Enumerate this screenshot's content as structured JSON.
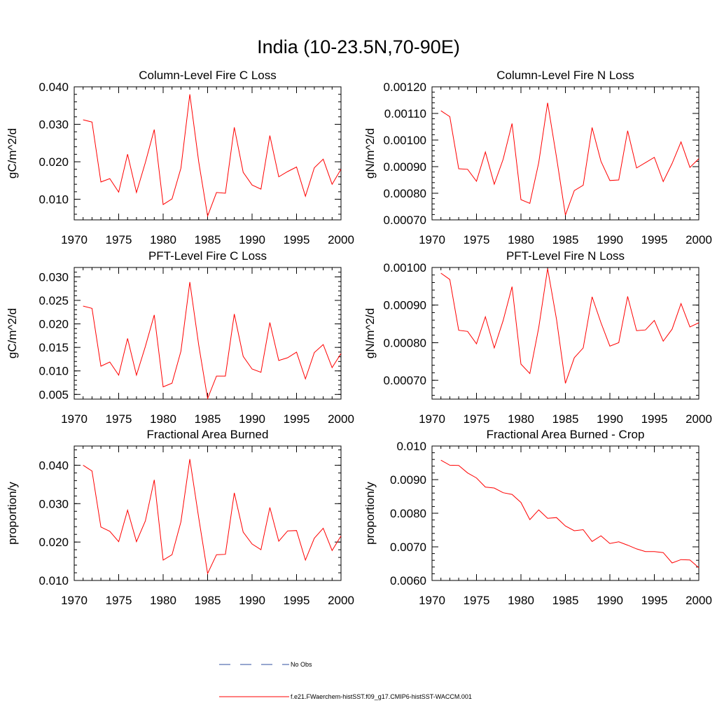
{
  "figure": {
    "title": "India (10-23.5N,70-90E)"
  },
  "colors": {
    "model": "#ff0000",
    "obs": "#2f4f9f",
    "axis": "#000000"
  },
  "legend": {
    "obs_label": "No Obs",
    "model_label": "f.e21.FWaerchem-histSST.f09_g17.CMIP6-histSST-WACCM.001"
  },
  "chart_data": [
    {
      "type": "line",
      "title": "Column-Level Fire C Loss",
      "ylabel": "gC/m^2/d",
      "xlim": [
        1970,
        2000
      ],
      "ylim": [
        0.0045,
        0.04
      ],
      "xticks": [
        1970,
        1975,
        1980,
        1985,
        1990,
        1995,
        2000
      ],
      "xtick_labels": [
        "1970",
        "1975",
        "1980",
        "1985",
        "1990",
        "1995",
        "2000"
      ],
      "yticks": [
        0.01,
        0.02,
        0.03,
        0.04
      ],
      "ytick_labels": [
        "0.010",
        "0.020",
        "0.030",
        "0.040"
      ],
      "yminor": 0.002,
      "x": [
        1971,
        1972,
        1973,
        1974,
        1975,
        1976,
        1977,
        1978,
        1979,
        1980,
        1981,
        1982,
        1983,
        1984,
        1985,
        1986,
        1987,
        1988,
        1989,
        1990,
        1991,
        1992,
        1993,
        1994,
        1995,
        1996,
        1997,
        1998,
        1999,
        2000
      ],
      "series": [
        {
          "values": [
            0.0312,
            0.0306,
            0.0146,
            0.0155,
            0.0119,
            0.022,
            0.0118,
            0.0198,
            0.0286,
            0.0086,
            0.0101,
            0.0183,
            0.038,
            0.02,
            0.0055,
            0.0118,
            0.0116,
            0.0292,
            0.0172,
            0.0138,
            0.0127,
            0.027,
            0.016,
            0.0174,
            0.0186,
            0.0108,
            0.0184,
            0.0207,
            0.014,
            0.018
          ]
        }
      ]
    },
    {
      "type": "line",
      "title": "Column-Level Fire N Loss",
      "ylabel": "gN/m^2/d",
      "xlim": [
        1970,
        2000
      ],
      "ylim": [
        0.0007,
        0.0012
      ],
      "xticks": [
        1970,
        1975,
        1980,
        1985,
        1990,
        1995,
        2000
      ],
      "xtick_labels": [
        "1970",
        "1975",
        "1980",
        "1985",
        "1990",
        "1995",
        "2000"
      ],
      "yticks": [
        0.0007,
        0.0008,
        0.0009,
        0.001,
        0.0011,
        0.0012
      ],
      "ytick_labels": [
        "0.00070",
        "0.00080",
        "0.00090",
        "0.00100",
        "0.00110",
        "0.00120"
      ],
      "yminor": 2e-05,
      "x": [
        1971,
        1972,
        1973,
        1974,
        1975,
        1976,
        1977,
        1978,
        1979,
        1980,
        1981,
        1982,
        1983,
        1984,
        1985,
        1986,
        1987,
        1988,
        1989,
        1990,
        1991,
        1992,
        1993,
        1994,
        1995,
        1996,
        1997,
        1998,
        1999,
        2000
      ],
      "series": [
        {
          "values": [
            0.00111,
            0.001088,
            0.000892,
            0.00089,
            0.000845,
            0.000955,
            0.000834,
            0.000928,
            0.001062,
            0.000776,
            0.000762,
            0.000915,
            0.00114,
            0.000935,
            0.000718,
            0.00081,
            0.00083,
            0.001047,
            0.00092,
            0.000848,
            0.00085,
            0.001035,
            0.000895,
            0.000915,
            0.000935,
            0.000844,
            0.000912,
            0.000993,
            0.000897,
            0.00093
          ]
        }
      ]
    },
    {
      "type": "line",
      "title": "PFT-Level Fire C Loss",
      "ylabel": "gC/m^2/d",
      "xlim": [
        1970,
        2000
      ],
      "ylim": [
        0.004,
        0.032
      ],
      "xticks": [
        1970,
        1975,
        1980,
        1985,
        1990,
        1995,
        2000
      ],
      "xtick_labels": [
        "1970",
        "1975",
        "1980",
        "1985",
        "1990",
        "1995",
        "2000"
      ],
      "yticks": [
        0.005,
        0.01,
        0.015,
        0.02,
        0.025,
        0.03
      ],
      "ytick_labels": [
        "0.005",
        "0.010",
        "0.015",
        "0.020",
        "0.025",
        "0.030"
      ],
      "yminor": 0.001,
      "x": [
        1971,
        1972,
        1973,
        1974,
        1975,
        1976,
        1977,
        1978,
        1979,
        1980,
        1981,
        1982,
        1983,
        1984,
        1985,
        1986,
        1987,
        1988,
        1989,
        1990,
        1991,
        1992,
        1993,
        1994,
        1995,
        1996,
        1997,
        1998,
        1999,
        2000
      ],
      "series": [
        {
          "values": [
            0.0238,
            0.0233,
            0.011,
            0.0119,
            0.0091,
            0.0169,
            0.0091,
            0.0152,
            0.0219,
            0.0066,
            0.0074,
            0.0142,
            0.0289,
            0.0155,
            0.0041,
            0.0089,
            0.0089,
            0.0221,
            0.0131,
            0.0104,
            0.0097,
            0.0203,
            0.0122,
            0.0128,
            0.014,
            0.0083,
            0.0139,
            0.0156,
            0.0107,
            0.0137
          ]
        }
      ]
    },
    {
      "type": "line",
      "title": "PFT-Level Fire N Loss",
      "ylabel": "gN/m^2/d",
      "xlim": [
        1970,
        2000
      ],
      "ylim": [
        0.00065,
        0.001
      ],
      "xticks": [
        1970,
        1975,
        1980,
        1985,
        1990,
        1995,
        2000
      ],
      "xtick_labels": [
        "1970",
        "1975",
        "1980",
        "1985",
        "1990",
        "1995",
        "2000"
      ],
      "yticks": [
        0.0007,
        0.0008,
        0.0009,
        0.001
      ],
      "ytick_labels": [
        "0.00070",
        "0.00080",
        "0.00090",
        "0.00100"
      ],
      "yminor": 2e-05,
      "x": [
        1971,
        1972,
        1973,
        1974,
        1975,
        1976,
        1977,
        1978,
        1979,
        1980,
        1981,
        1982,
        1983,
        1984,
        1985,
        1986,
        1987,
        1988,
        1989,
        1990,
        1991,
        1992,
        1993,
        1994,
        1995,
        1996,
        1997,
        1998,
        1999,
        2000
      ],
      "series": [
        {
          "values": [
            0.000985,
            0.000968,
            0.000833,
            0.00083,
            0.000797,
            0.000869,
            0.000786,
            0.000859,
            0.000949,
            0.000743,
            0.000718,
            0.00084,
            0.000997,
            0.000862,
            0.000692,
            0.00076,
            0.000786,
            0.000922,
            0.000853,
            0.000791,
            0.0008,
            0.000923,
            0.000832,
            0.000834,
            0.000859,
            0.000804,
            0.000836,
            0.000904,
            0.000842,
            0.000853
          ]
        }
      ]
    },
    {
      "type": "line",
      "title": "Fractional Area Burned",
      "ylabel": "proportion/y",
      "xlim": [
        1970,
        2000
      ],
      "ylim": [
        0.01,
        0.045
      ],
      "xticks": [
        1970,
        1975,
        1980,
        1985,
        1990,
        1995,
        2000
      ],
      "xtick_labels": [
        "1970",
        "1975",
        "1980",
        "1985",
        "1990",
        "1995",
        "2000"
      ],
      "yticks": [
        0.01,
        0.02,
        0.03,
        0.04
      ],
      "ytick_labels": [
        "0.010",
        "0.020",
        "0.030",
        "0.040"
      ],
      "yminor": 0.002,
      "x": [
        1971,
        1972,
        1973,
        1974,
        1975,
        1976,
        1977,
        1978,
        1979,
        1980,
        1981,
        1982,
        1983,
        1984,
        1985,
        1986,
        1987,
        1988,
        1989,
        1990,
        1991,
        1992,
        1993,
        1994,
        1995,
        1996,
        1997,
        1998,
        1999,
        2000
      ],
      "series": [
        {
          "values": [
            0.04,
            0.0385,
            0.0239,
            0.0228,
            0.0201,
            0.0283,
            0.0201,
            0.0255,
            0.0362,
            0.0153,
            0.0167,
            0.0253,
            0.0416,
            0.0263,
            0.0118,
            0.0167,
            0.0168,
            0.0328,
            0.0226,
            0.0195,
            0.018,
            0.029,
            0.0202,
            0.0229,
            0.023,
            0.0153,
            0.021,
            0.0236,
            0.0178,
            0.0216
          ]
        }
      ]
    },
    {
      "type": "line",
      "title": "Fractional Area Burned - Crop",
      "ylabel": "proportion/y",
      "xlim": [
        1970,
        2000
      ],
      "ylim": [
        0.006,
        0.01
      ],
      "xticks": [
        1970,
        1975,
        1980,
        1985,
        1990,
        1995,
        2000
      ],
      "xtick_labels": [
        "1970",
        "1975",
        "1980",
        "1985",
        "1990",
        "1995",
        "2000"
      ],
      "yticks": [
        0.006,
        0.007,
        0.008,
        0.009,
        0.01
      ],
      "ytick_labels": [
        "0.0060",
        "0.0070",
        "0.0080",
        "0.0090",
        "0.010"
      ],
      "yminor": 0.0002,
      "x": [
        1971,
        1972,
        1973,
        1974,
        1975,
        1976,
        1977,
        1978,
        1979,
        1980,
        1981,
        1982,
        1983,
        1984,
        1985,
        1986,
        1987,
        1988,
        1989,
        1990,
        1991,
        1992,
        1993,
        1994,
        1995,
        1996,
        1997,
        1998,
        1999,
        2000
      ],
      "series": [
        {
          "values": [
            0.00958,
            0.00943,
            0.00942,
            0.0092,
            0.00905,
            0.00878,
            0.00875,
            0.00861,
            0.00856,
            0.00832,
            0.00781,
            0.0081,
            0.00785,
            0.00787,
            0.00762,
            0.00748,
            0.00751,
            0.00716,
            0.00733,
            0.0071,
            0.00715,
            0.00705,
            0.00694,
            0.00686,
            0.00686,
            0.00683,
            0.00652,
            0.00662,
            0.00661,
            0.00638
          ]
        }
      ]
    }
  ]
}
